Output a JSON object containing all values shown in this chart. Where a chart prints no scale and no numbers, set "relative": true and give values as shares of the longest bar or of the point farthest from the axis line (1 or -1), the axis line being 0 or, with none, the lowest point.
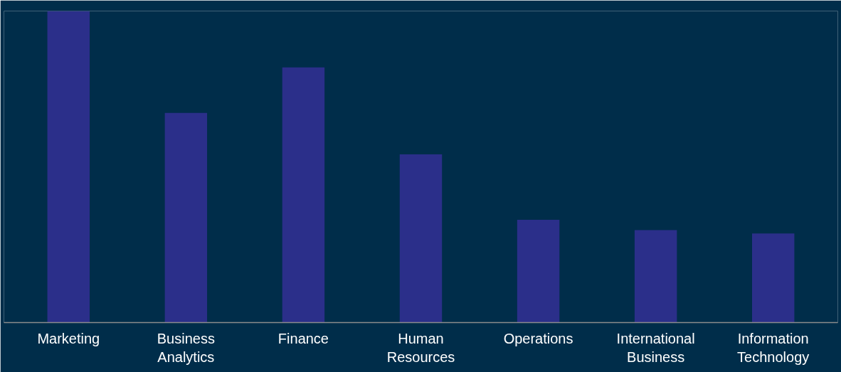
{
  "chart_data": {
    "type": "bar",
    "relative": true,
    "categories": [
      "Marketing",
      "Business Analytics",
      "Finance",
      "Human Resources",
      "Operations",
      "International Business",
      "Information Technology"
    ],
    "values": [
      1,
      0.673,
      0.819,
      0.54,
      0.33,
      0.297,
      0.286
    ],
    "color": "#2b2f8a",
    "grid": false
  }
}
